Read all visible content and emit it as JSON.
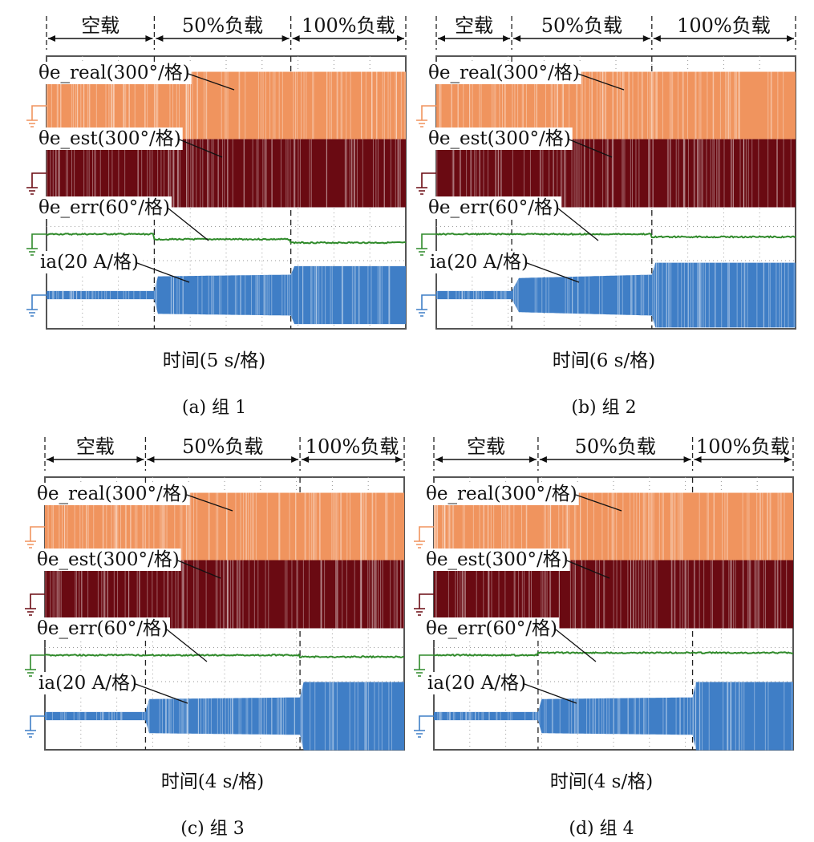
{
  "colors": {
    "theta_real": "#f0945e",
    "theta_est": "#6a0a12",
    "theta_err": "#2f8a2a",
    "ia": "#3f7ec6",
    "grid": "#9a9a9a",
    "frame": "#555555"
  },
  "chart_data": [
    {
      "type": "line",
      "panel_label": "(a) 组 1",
      "xlabel": "时间(5 s/格)",
      "segments": [
        "空载",
        "50%负载",
        "100%负载"
      ],
      "segment_bounds_div": [
        0,
        3,
        6.8,
        10
      ],
      "grid": true,
      "grid_divisions": {
        "x": 10,
        "y": 8
      },
      "series": [
        {
          "name": "θe_real(300°/格)",
          "key": "theta_real",
          "envelope_div": [
            [
              0,
              1.0
            ],
            [
              10,
              1.0
            ]
          ]
        },
        {
          "name": "θe_est(300°/格)",
          "key": "theta_est",
          "envelope_div": [
            [
              0,
              1.0
            ],
            [
              10,
              1.0
            ]
          ]
        },
        {
          "name": "θe_err(60°/格)",
          "key": "theta_err",
          "level_div": [
            0.0,
            -0.15,
            -0.25
          ]
        },
        {
          "name": "ia(20 A/格)",
          "key": "ia",
          "envelope_div": [
            [
              0,
              0.12
            ],
            [
              3,
              0.12
            ],
            [
              3.1,
              0.55
            ],
            [
              6.8,
              0.6
            ],
            [
              6.9,
              0.85
            ],
            [
              10,
              0.85
            ]
          ]
        }
      ]
    },
    {
      "type": "line",
      "panel_label": "(b) 组 2",
      "xlabel": "时间(6 s/格)",
      "segments": [
        "空载",
        "50%负载",
        "100%负载"
      ],
      "segment_bounds_div": [
        0,
        2.1,
        6,
        10
      ],
      "grid": true,
      "grid_divisions": {
        "x": 10,
        "y": 8
      },
      "series": [
        {
          "name": "θe_real(300°/格)",
          "key": "theta_real",
          "envelope_div": [
            [
              0,
              1.0
            ],
            [
              10,
              1.0
            ]
          ]
        },
        {
          "name": "θe_est(300°/格)",
          "key": "theta_est",
          "envelope_div": [
            [
              0,
              1.0
            ],
            [
              10,
              1.0
            ]
          ]
        },
        {
          "name": "θe_err(60°/格)",
          "key": "theta_err",
          "level_div": [
            0.0,
            0.0,
            -0.08
          ]
        },
        {
          "name": "ia(20 A/格)",
          "key": "ia",
          "envelope_div": [
            [
              0,
              0.12
            ],
            [
              2.1,
              0.12
            ],
            [
              2.3,
              0.5
            ],
            [
              6,
              0.6
            ],
            [
              6.1,
              0.95
            ],
            [
              10,
              0.95
            ]
          ]
        }
      ]
    },
    {
      "type": "line",
      "panel_label": "(c) 组 3",
      "xlabel": "时间(4 s/格)",
      "segments": [
        "空载",
        "50%负载",
        "100%负载"
      ],
      "segment_bounds_div": [
        0,
        2.8,
        7.1,
        10
      ],
      "grid": true,
      "grid_divisions": {
        "x": 10,
        "y": 8
      },
      "series": [
        {
          "name": "θe_real(300°/格)",
          "key": "theta_real",
          "envelope_div": [
            [
              0,
              1.0
            ],
            [
              10,
              1.0
            ]
          ]
        },
        {
          "name": "θe_est(300°/格)",
          "key": "theta_est",
          "envelope_div": [
            [
              0,
              1.0
            ],
            [
              10,
              1.0
            ]
          ]
        },
        {
          "name": "θe_err(60°/格)",
          "key": "theta_err",
          "level_div": [
            0.0,
            0.0,
            -0.05
          ]
        },
        {
          "name": "ia(20 A/格)",
          "key": "ia",
          "envelope_div": [
            [
              0,
              0.12
            ],
            [
              2.8,
              0.12
            ],
            [
              2.9,
              0.5
            ],
            [
              7.1,
              0.55
            ],
            [
              7.2,
              1.0
            ],
            [
              10,
              1.0
            ]
          ]
        }
      ]
    },
    {
      "type": "line",
      "panel_label": "(d) 组 4",
      "xlabel": "时间(4 s/格)",
      "segments": [
        "空载",
        "50%负载",
        "100%负载"
      ],
      "segment_bounds_div": [
        0,
        2.9,
        7.2,
        10
      ],
      "grid": true,
      "grid_divisions": {
        "x": 10,
        "y": 8
      },
      "series": [
        {
          "name": "θe_real(300°/格)",
          "key": "theta_real",
          "envelope_div": [
            [
              0,
              1.0
            ],
            [
              10,
              1.0
            ]
          ]
        },
        {
          "name": "θe_est(300°/格)",
          "key": "theta_est",
          "envelope_div": [
            [
              0,
              1.0
            ],
            [
              10,
              1.0
            ]
          ]
        },
        {
          "name": "θe_err(60°/格)",
          "key": "theta_err",
          "level_div": [
            0.0,
            0.07,
            0.07
          ]
        },
        {
          "name": "ia(20 A/格)",
          "key": "ia",
          "envelope_div": [
            [
              0,
              0.12
            ],
            [
              2.9,
              0.12
            ],
            [
              3.0,
              0.5
            ],
            [
              7.2,
              0.55
            ],
            [
              7.3,
              1.0
            ],
            [
              10,
              1.0
            ]
          ]
        }
      ]
    }
  ]
}
